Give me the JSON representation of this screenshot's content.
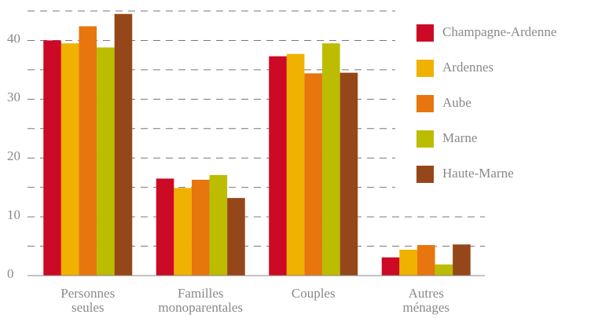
{
  "chart_data": {
    "type": "bar",
    "categories": [
      [
        "Personnes",
        "seules"
      ],
      [
        "Familles",
        "monoparentales"
      ],
      [
        "Couples"
      ],
      [
        "Autres",
        "ménages"
      ]
    ],
    "series": [
      {
        "name": "Champagne-Ardenne",
        "color": "#cc0a26",
        "values": [
          40.0,
          16.5,
          37.3,
          3.1
        ]
      },
      {
        "name": "Ardennes",
        "color": "#f0b100",
        "values": [
          39.5,
          14.9,
          37.7,
          4.4
        ]
      },
      {
        "name": "Aube",
        "color": "#e7760f",
        "values": [
          42.4,
          16.3,
          34.4,
          5.2
        ]
      },
      {
        "name": "Marne",
        "color": "#bcbc00",
        "values": [
          38.8,
          17.1,
          39.5,
          1.9
        ]
      },
      {
        "name": "Haute-Marne",
        "color": "#964719",
        "values": [
          44.5,
          13.2,
          34.5,
          5.3
        ]
      }
    ],
    "ylim": [
      0,
      45
    ],
    "yticks": [
      0,
      10,
      20,
      30,
      40
    ],
    "minor_yticks": [
      5,
      15,
      25,
      35,
      45
    ],
    "grid": true,
    "legend": "right"
  }
}
